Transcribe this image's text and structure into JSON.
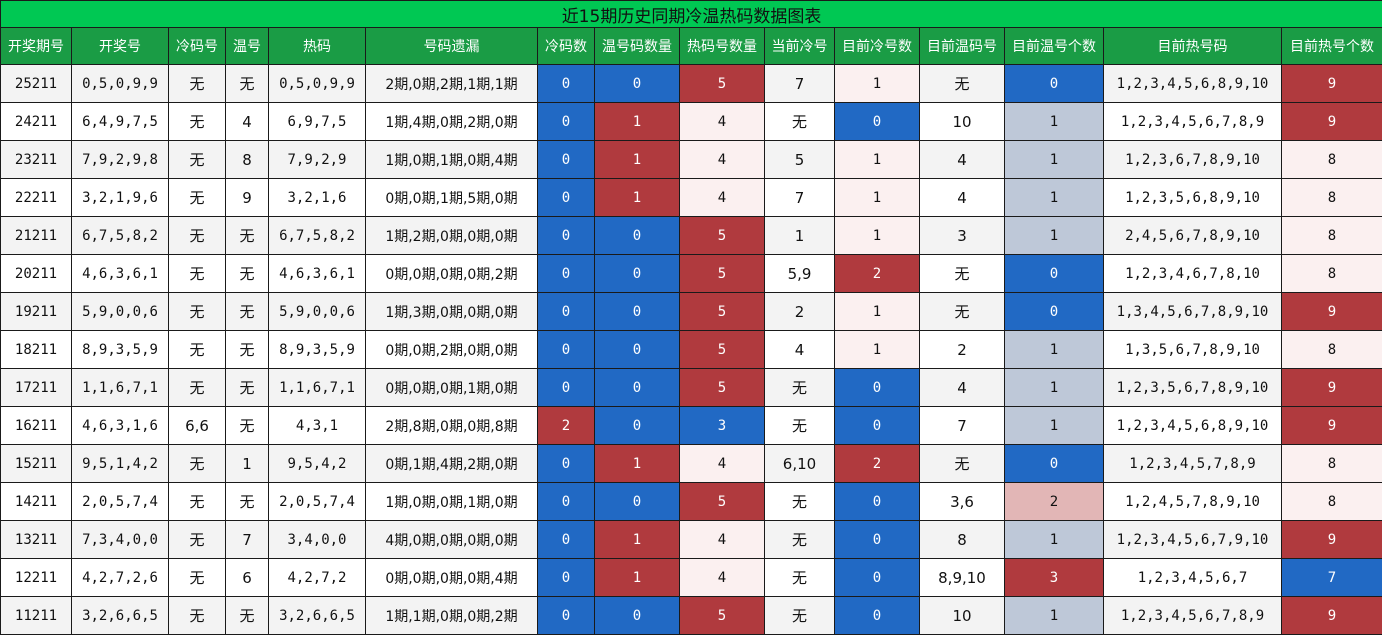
{
  "title": "近15期历史同期冷温热码数据图表",
  "headers": [
    "开奖期号",
    "开奖号",
    "冷码号",
    "温号",
    "热码",
    "号码遗漏",
    "冷码数",
    "温号码数量",
    "热码号数量",
    "当前冷号",
    "目前冷号数",
    "目前温码号",
    "目前温号个数",
    "目前热号码",
    "目前热号个数"
  ],
  "colors": {
    "blue": "#2169c4",
    "red": "#b03a3e",
    "pale": "#fbf0f0",
    "gray": "#bec8d8",
    "pink": "#e2b6b6",
    "title_bg": "#00c853",
    "header_bg": "#1a9c45"
  },
  "rows": [
    {
      "period": "25211",
      "draw": "0,5,0,9,9",
      "cold": "无",
      "warm": "无",
      "hot": "0,5,0,9,9",
      "miss": "2期,0期,2期,1期,1期",
      "cold_cnt": "0",
      "warm_cnt": "0",
      "hot_cnt": "5",
      "cur_cold": "7",
      "now_cold_cnt": "1",
      "now_warm": "无",
      "now_warm_cnt": "0",
      "now_hot": "1,2,3,4,5,6,8,9,10",
      "now_hot_cnt": "9",
      "colors": {
        "cold_cnt": "blue",
        "warm_cnt": "blue",
        "hot_cnt": "red",
        "now_cold_cnt": "pale",
        "now_warm_cnt": "blue",
        "now_hot_cnt": "red"
      }
    },
    {
      "period": "24211",
      "draw": "6,4,9,7,5",
      "cold": "无",
      "warm": "4",
      "hot": "6,9,7,5",
      "miss": "1期,4期,0期,2期,0期",
      "cold_cnt": "0",
      "warm_cnt": "1",
      "hot_cnt": "4",
      "cur_cold": "无",
      "now_cold_cnt": "0",
      "now_warm": "10",
      "now_warm_cnt": "1",
      "now_hot": "1,2,3,4,5,6,7,8,9",
      "now_hot_cnt": "9",
      "colors": {
        "cold_cnt": "blue",
        "warm_cnt": "red",
        "hot_cnt": "pale",
        "now_cold_cnt": "blue",
        "now_warm_cnt": "gray",
        "now_hot_cnt": "red"
      }
    },
    {
      "period": "23211",
      "draw": "7,9,2,9,8",
      "cold": "无",
      "warm": "8",
      "hot": "7,9,2,9",
      "miss": "1期,0期,1期,0期,4期",
      "cold_cnt": "0",
      "warm_cnt": "1",
      "hot_cnt": "4",
      "cur_cold": "5",
      "now_cold_cnt": "1",
      "now_warm": "4",
      "now_warm_cnt": "1",
      "now_hot": "1,2,3,6,7,8,9,10",
      "now_hot_cnt": "8",
      "colors": {
        "cold_cnt": "blue",
        "warm_cnt": "red",
        "hot_cnt": "pale",
        "now_cold_cnt": "pale",
        "now_warm_cnt": "gray",
        "now_hot_cnt": "pale"
      }
    },
    {
      "period": "22211",
      "draw": "3,2,1,9,6",
      "cold": "无",
      "warm": "9",
      "hot": "3,2,1,6",
      "miss": "0期,0期,1期,5期,0期",
      "cold_cnt": "0",
      "warm_cnt": "1",
      "hot_cnt": "4",
      "cur_cold": "7",
      "now_cold_cnt": "1",
      "now_warm": "4",
      "now_warm_cnt": "1",
      "now_hot": "1,2,3,5,6,8,9,10",
      "now_hot_cnt": "8",
      "colors": {
        "cold_cnt": "blue",
        "warm_cnt": "red",
        "hot_cnt": "pale",
        "now_cold_cnt": "pale",
        "now_warm_cnt": "gray",
        "now_hot_cnt": "pale"
      }
    },
    {
      "period": "21211",
      "draw": "6,7,5,8,2",
      "cold": "无",
      "warm": "无",
      "hot": "6,7,5,8,2",
      "miss": "1期,2期,0期,0期,0期",
      "cold_cnt": "0",
      "warm_cnt": "0",
      "hot_cnt": "5",
      "cur_cold": "1",
      "now_cold_cnt": "1",
      "now_warm": "3",
      "now_warm_cnt": "1",
      "now_hot": "2,4,5,6,7,8,9,10",
      "now_hot_cnt": "8",
      "colors": {
        "cold_cnt": "blue",
        "warm_cnt": "blue",
        "hot_cnt": "red",
        "now_cold_cnt": "pale",
        "now_warm_cnt": "gray",
        "now_hot_cnt": "pale"
      }
    },
    {
      "period": "20211",
      "draw": "4,6,3,6,1",
      "cold": "无",
      "warm": "无",
      "hot": "4,6,3,6,1",
      "miss": "0期,0期,0期,0期,2期",
      "cold_cnt": "0",
      "warm_cnt": "0",
      "hot_cnt": "5",
      "cur_cold": "5,9",
      "now_cold_cnt": "2",
      "now_warm": "无",
      "now_warm_cnt": "0",
      "now_hot": "1,2,3,4,6,7,8,10",
      "now_hot_cnt": "8",
      "colors": {
        "cold_cnt": "blue",
        "warm_cnt": "blue",
        "hot_cnt": "red",
        "now_cold_cnt": "red",
        "now_warm_cnt": "blue",
        "now_hot_cnt": "pale"
      }
    },
    {
      "period": "19211",
      "draw": "5,9,0,0,6",
      "cold": "无",
      "warm": "无",
      "hot": "5,9,0,0,6",
      "miss": "1期,3期,0期,0期,0期",
      "cold_cnt": "0",
      "warm_cnt": "0",
      "hot_cnt": "5",
      "cur_cold": "2",
      "now_cold_cnt": "1",
      "now_warm": "无",
      "now_warm_cnt": "0",
      "now_hot": "1,3,4,5,6,7,8,9,10",
      "now_hot_cnt": "9",
      "colors": {
        "cold_cnt": "blue",
        "warm_cnt": "blue",
        "hot_cnt": "red",
        "now_cold_cnt": "pale",
        "now_warm_cnt": "blue",
        "now_hot_cnt": "red"
      }
    },
    {
      "period": "18211",
      "draw": "8,9,3,5,9",
      "cold": "无",
      "warm": "无",
      "hot": "8,9,3,5,9",
      "miss": "0期,0期,2期,0期,0期",
      "cold_cnt": "0",
      "warm_cnt": "0",
      "hot_cnt": "5",
      "cur_cold": "4",
      "now_cold_cnt": "1",
      "now_warm": "2",
      "now_warm_cnt": "1",
      "now_hot": "1,3,5,6,7,8,9,10",
      "now_hot_cnt": "8",
      "colors": {
        "cold_cnt": "blue",
        "warm_cnt": "blue",
        "hot_cnt": "red",
        "now_cold_cnt": "pale",
        "now_warm_cnt": "gray",
        "now_hot_cnt": "pale"
      }
    },
    {
      "period": "17211",
      "draw": "1,1,6,7,1",
      "cold": "无",
      "warm": "无",
      "hot": "1,1,6,7,1",
      "miss": "0期,0期,0期,1期,0期",
      "cold_cnt": "0",
      "warm_cnt": "0",
      "hot_cnt": "5",
      "cur_cold": "无",
      "now_cold_cnt": "0",
      "now_warm": "4",
      "now_warm_cnt": "1",
      "now_hot": "1,2,3,5,6,7,8,9,10",
      "now_hot_cnt": "9",
      "colors": {
        "cold_cnt": "blue",
        "warm_cnt": "blue",
        "hot_cnt": "red",
        "now_cold_cnt": "blue",
        "now_warm_cnt": "gray",
        "now_hot_cnt": "red"
      }
    },
    {
      "period": "16211",
      "draw": "4,6,3,1,6",
      "cold": "6,6",
      "warm": "无",
      "hot": "4,3,1",
      "miss": "2期,8期,0期,0期,8期",
      "cold_cnt": "2",
      "warm_cnt": "0",
      "hot_cnt": "3",
      "cur_cold": "无",
      "now_cold_cnt": "0",
      "now_warm": "7",
      "now_warm_cnt": "1",
      "now_hot": "1,2,3,4,5,6,8,9,10",
      "now_hot_cnt": "9",
      "colors": {
        "cold_cnt": "red",
        "warm_cnt": "blue",
        "hot_cnt": "blue",
        "now_cold_cnt": "blue",
        "now_warm_cnt": "gray",
        "now_hot_cnt": "red"
      }
    },
    {
      "period": "15211",
      "draw": "9,5,1,4,2",
      "cold": "无",
      "warm": "1",
      "hot": "9,5,4,2",
      "miss": "0期,1期,4期,2期,0期",
      "cold_cnt": "0",
      "warm_cnt": "1",
      "hot_cnt": "4",
      "cur_cold": "6,10",
      "now_cold_cnt": "2",
      "now_warm": "无",
      "now_warm_cnt": "0",
      "now_hot": "1,2,3,4,5,7,8,9",
      "now_hot_cnt": "8",
      "colors": {
        "cold_cnt": "blue",
        "warm_cnt": "red",
        "hot_cnt": "pale",
        "now_cold_cnt": "red",
        "now_warm_cnt": "blue",
        "now_hot_cnt": "pale"
      }
    },
    {
      "period": "14211",
      "draw": "2,0,5,7,4",
      "cold": "无",
      "warm": "无",
      "hot": "2,0,5,7,4",
      "miss": "1期,0期,0期,1期,0期",
      "cold_cnt": "0",
      "warm_cnt": "0",
      "hot_cnt": "5",
      "cur_cold": "无",
      "now_cold_cnt": "0",
      "now_warm": "3,6",
      "now_warm_cnt": "2",
      "now_hot": "1,2,4,5,7,8,9,10",
      "now_hot_cnt": "8",
      "colors": {
        "cold_cnt": "blue",
        "warm_cnt": "blue",
        "hot_cnt": "red",
        "now_cold_cnt": "blue",
        "now_warm_cnt": "pink",
        "now_hot_cnt": "pale"
      }
    },
    {
      "period": "13211",
      "draw": "7,3,4,0,0",
      "cold": "无",
      "warm": "7",
      "hot": "3,4,0,0",
      "miss": "4期,0期,0期,0期,0期",
      "cold_cnt": "0",
      "warm_cnt": "1",
      "hot_cnt": "4",
      "cur_cold": "无",
      "now_cold_cnt": "0",
      "now_warm": "8",
      "now_warm_cnt": "1",
      "now_hot": "1,2,3,4,5,6,7,9,10",
      "now_hot_cnt": "9",
      "colors": {
        "cold_cnt": "blue",
        "warm_cnt": "red",
        "hot_cnt": "pale",
        "now_cold_cnt": "blue",
        "now_warm_cnt": "gray",
        "now_hot_cnt": "red"
      }
    },
    {
      "period": "12211",
      "draw": "4,2,7,2,6",
      "cold": "无",
      "warm": "6",
      "hot": "4,2,7,2",
      "miss": "0期,0期,0期,0期,4期",
      "cold_cnt": "0",
      "warm_cnt": "1",
      "hot_cnt": "4",
      "cur_cold": "无",
      "now_cold_cnt": "0",
      "now_warm": "8,9,10",
      "now_warm_cnt": "3",
      "now_hot": "1,2,3,4,5,6,7",
      "now_hot_cnt": "7",
      "colors": {
        "cold_cnt": "blue",
        "warm_cnt": "red",
        "hot_cnt": "pale",
        "now_cold_cnt": "blue",
        "now_warm_cnt": "red",
        "now_hot_cnt": "blue"
      }
    },
    {
      "period": "11211",
      "draw": "3,2,6,6,5",
      "cold": "无",
      "warm": "无",
      "hot": "3,2,6,6,5",
      "miss": "1期,1期,0期,0期,2期",
      "cold_cnt": "0",
      "warm_cnt": "0",
      "hot_cnt": "5",
      "cur_cold": "无",
      "now_cold_cnt": "0",
      "now_warm": "10",
      "now_warm_cnt": "1",
      "now_hot": "1,2,3,4,5,6,7,8,9",
      "now_hot_cnt": "9",
      "colors": {
        "cold_cnt": "blue",
        "warm_cnt": "blue",
        "hot_cnt": "red",
        "now_cold_cnt": "blue",
        "now_warm_cnt": "gray",
        "now_hot_cnt": "red"
      }
    }
  ]
}
